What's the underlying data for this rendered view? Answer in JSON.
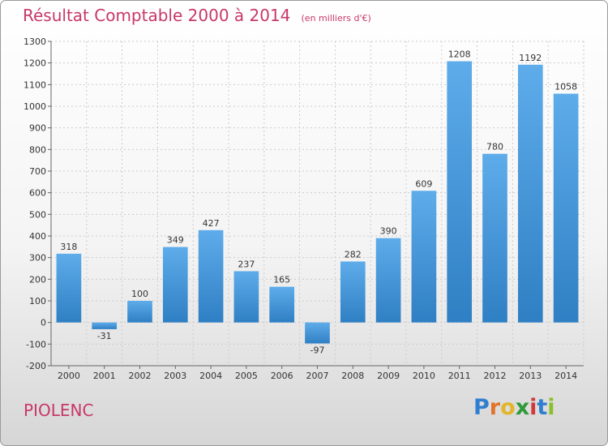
{
  "header": {
    "title": "Résultat Comptable 2000 à 2014",
    "unit": "(en milliers d'€)"
  },
  "footer": {
    "commune": "PIOLENC",
    "logo_letters": [
      "P",
      "r",
      "o",
      "x",
      "i",
      "t",
      "i"
    ],
    "logo_colors": [
      "#2f7fd0",
      "#e2742a",
      "#e2b52a",
      "#2f9a3c",
      "#d03a3a",
      "#2f7fd0",
      "#8bbf2a"
    ]
  },
  "colors": {
    "title": "#c8376a",
    "bar_light": "#5eacea",
    "bar_dark": "#2f7fc4",
    "grid": "#cccccc",
    "axis_text": "#333333"
  },
  "chart_data": {
    "type": "bar",
    "categories": [
      "2000",
      "2001",
      "2002",
      "2003",
      "2004",
      "2005",
      "2006",
      "2007",
      "2008",
      "2009",
      "2010",
      "2011",
      "2012",
      "2013",
      "2014"
    ],
    "values": [
      318,
      -31,
      100,
      349,
      427,
      237,
      165,
      -97,
      282,
      390,
      609,
      1208,
      780,
      1192,
      1058
    ],
    "data_labels": [
      "318",
      "-31",
      "100",
      "349",
      "427",
      "237",
      "165",
      "-97",
      "282",
      "390",
      "609",
      "1208",
      "780",
      "1192",
      "1058"
    ],
    "yticks": [
      -200,
      -100,
      0,
      100,
      200,
      300,
      400,
      500,
      600,
      700,
      800,
      900,
      1000,
      1100,
      1200,
      1300
    ],
    "ytick_labels": [
      "-200",
      "-100",
      "0",
      "100",
      "200",
      "300",
      "400",
      "500",
      "600",
      "700",
      "800",
      "900",
      "1000",
      "1100",
      "1200",
      "1300"
    ],
    "ylim": [
      -200,
      1300
    ],
    "grid": true,
    "legend": "none"
  }
}
